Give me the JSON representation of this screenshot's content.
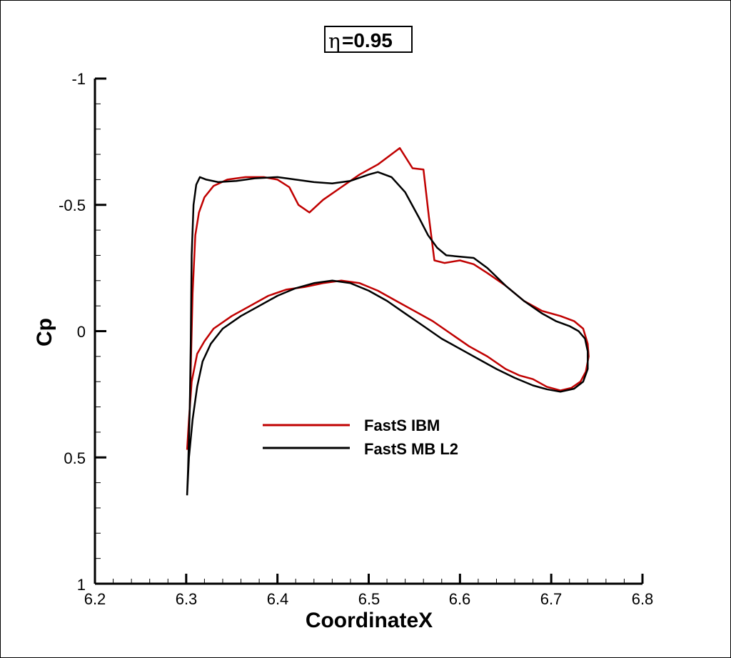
{
  "chart_data": {
    "type": "line",
    "title_symbol": "η",
    "title_value": "=0.95",
    "xlabel": "CoordinateX",
    "ylabel": "Cp",
    "xlim": [
      6.2,
      6.8
    ],
    "ylim": [
      -1,
      1
    ],
    "y_reversed": true,
    "x_ticks": [
      "6.2",
      "6.3",
      "6.4",
      "6.5",
      "6.6",
      "6.7",
      "6.8"
    ],
    "y_ticks": [
      "-1",
      "-0.5",
      "0",
      "0.5",
      "1"
    ],
    "legend_placement": "center-left",
    "series": [
      {
        "name": "FastS IBM",
        "color": "#c00000",
        "points": [
          [
            6.301,
            0.47
          ],
          [
            6.304,
            0.3
          ],
          [
            6.307,
            -0.15
          ],
          [
            6.31,
            -0.38
          ],
          [
            6.314,
            -0.47
          ],
          [
            6.32,
            -0.53
          ],
          [
            6.33,
            -0.575
          ],
          [
            6.345,
            -0.6
          ],
          [
            6.365,
            -0.61
          ],
          [
            6.385,
            -0.61
          ],
          [
            6.4,
            -0.6
          ],
          [
            6.413,
            -0.57
          ],
          [
            6.423,
            -0.5
          ],
          [
            6.435,
            -0.47
          ],
          [
            6.45,
            -0.52
          ],
          [
            6.47,
            -0.57
          ],
          [
            6.49,
            -0.62
          ],
          [
            6.51,
            -0.66
          ],
          [
            6.534,
            -0.725
          ],
          [
            6.548,
            -0.645
          ],
          [
            6.56,
            -0.64
          ],
          [
            6.566,
            -0.45
          ],
          [
            6.572,
            -0.28
          ],
          [
            6.583,
            -0.27
          ],
          [
            6.6,
            -0.28
          ],
          [
            6.615,
            -0.265
          ],
          [
            6.63,
            -0.23
          ],
          [
            6.65,
            -0.18
          ],
          [
            6.67,
            -0.12
          ],
          [
            6.69,
            -0.08
          ],
          [
            6.71,
            -0.06
          ],
          [
            6.725,
            -0.04
          ],
          [
            6.735,
            -0.01
          ],
          [
            6.74,
            0.05
          ],
          [
            6.741,
            0.1
          ],
          [
            6.738,
            0.16
          ],
          [
            6.732,
            0.2
          ],
          [
            6.722,
            0.225
          ],
          [
            6.71,
            0.235
          ],
          [
            6.695,
            0.22
          ],
          [
            6.68,
            0.19
          ],
          [
            6.665,
            0.175
          ],
          [
            6.65,
            0.15
          ],
          [
            6.63,
            0.1
          ],
          [
            6.61,
            0.06
          ],
          [
            6.59,
            0.01
          ],
          [
            6.57,
            -0.04
          ],
          [
            6.55,
            -0.08
          ],
          [
            6.53,
            -0.12
          ],
          [
            6.51,
            -0.16
          ],
          [
            6.49,
            -0.19
          ],
          [
            6.47,
            -0.2
          ],
          [
            6.45,
            -0.19
          ],
          [
            6.43,
            -0.175
          ],
          [
            6.41,
            -0.165
          ],
          [
            6.39,
            -0.14
          ],
          [
            6.37,
            -0.1
          ],
          [
            6.35,
            -0.06
          ],
          [
            6.33,
            -0.01
          ],
          [
            6.32,
            0.04
          ],
          [
            6.312,
            0.09
          ],
          [
            6.306,
            0.2
          ],
          [
            6.303,
            0.35
          ],
          [
            6.301,
            0.47
          ]
        ]
      },
      {
        "name": "FastS MB L2",
        "color": "#000000",
        "points": [
          [
            6.301,
            0.65
          ],
          [
            6.302,
            0.55
          ],
          [
            6.304,
            0.3
          ],
          [
            6.305,
            0.05
          ],
          [
            6.306,
            -0.3
          ],
          [
            6.308,
            -0.5
          ],
          [
            6.311,
            -0.58
          ],
          [
            6.315,
            -0.61
          ],
          [
            6.322,
            -0.6
          ],
          [
            6.335,
            -0.59
          ],
          [
            6.355,
            -0.595
          ],
          [
            6.375,
            -0.605
          ],
          [
            6.4,
            -0.61
          ],
          [
            6.42,
            -0.6
          ],
          [
            6.44,
            -0.59
          ],
          [
            6.46,
            -0.585
          ],
          [
            6.48,
            -0.595
          ],
          [
            6.5,
            -0.62
          ],
          [
            6.51,
            -0.63
          ],
          [
            6.525,
            -0.61
          ],
          [
            6.54,
            -0.55
          ],
          [
            6.555,
            -0.45
          ],
          [
            6.565,
            -0.38
          ],
          [
            6.575,
            -0.33
          ],
          [
            6.585,
            -0.3
          ],
          [
            6.6,
            -0.295
          ],
          [
            6.615,
            -0.29
          ],
          [
            6.63,
            -0.25
          ],
          [
            6.65,
            -0.18
          ],
          [
            6.67,
            -0.12
          ],
          [
            6.69,
            -0.07
          ],
          [
            6.705,
            -0.04
          ],
          [
            6.72,
            -0.02
          ],
          [
            6.73,
            0.0
          ],
          [
            6.737,
            0.03
          ],
          [
            6.74,
            0.08
          ],
          [
            6.74,
            0.15
          ],
          [
            6.735,
            0.2
          ],
          [
            6.725,
            0.228
          ],
          [
            6.71,
            0.24
          ],
          [
            6.695,
            0.23
          ],
          [
            6.68,
            0.215
          ],
          [
            6.66,
            0.185
          ],
          [
            6.64,
            0.15
          ],
          [
            6.62,
            0.11
          ],
          [
            6.6,
            0.07
          ],
          [
            6.58,
            0.03
          ],
          [
            6.56,
            -0.02
          ],
          [
            6.54,
            -0.07
          ],
          [
            6.52,
            -0.12
          ],
          [
            6.5,
            -0.16
          ],
          [
            6.48,
            -0.19
          ],
          [
            6.46,
            -0.2
          ],
          [
            6.44,
            -0.19
          ],
          [
            6.42,
            -0.17
          ],
          [
            6.4,
            -0.14
          ],
          [
            6.38,
            -0.1
          ],
          [
            6.36,
            -0.06
          ],
          [
            6.34,
            -0.01
          ],
          [
            6.327,
            0.05
          ],
          [
            6.318,
            0.12
          ],
          [
            6.312,
            0.22
          ],
          [
            6.307,
            0.35
          ],
          [
            6.303,
            0.5
          ],
          [
            6.301,
            0.65
          ]
        ]
      }
    ]
  }
}
